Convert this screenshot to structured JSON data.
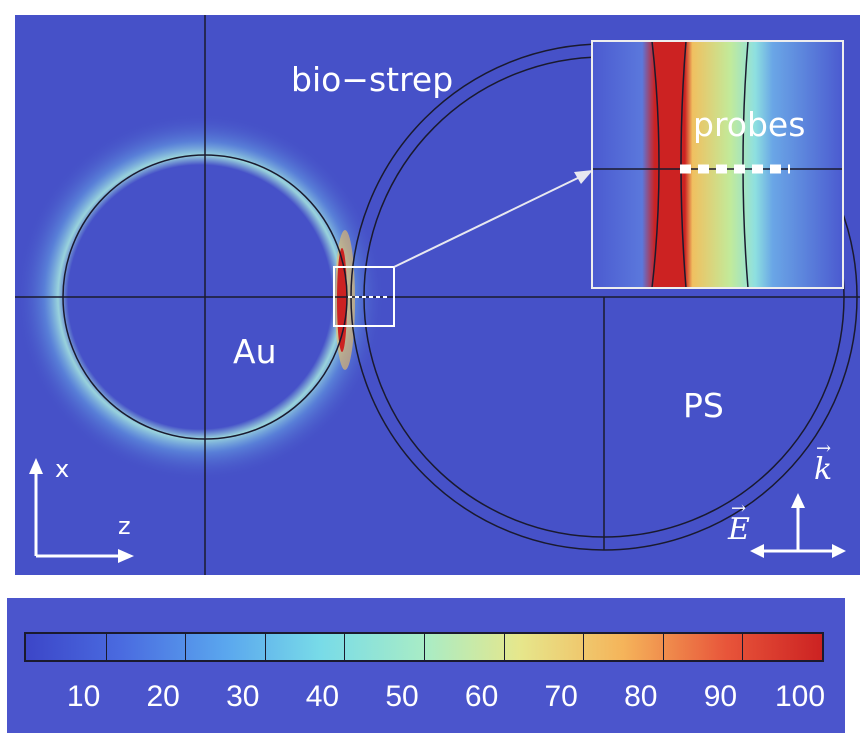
{
  "labels": {
    "bio_strep": "bio−strep",
    "probes": "probes",
    "au": "Au",
    "ps": "PS",
    "axis_x": "x",
    "axis_z": "z",
    "k_vector": "k",
    "e_vector": "E"
  },
  "colorbar": {
    "tick_labels": [
      "10",
      "20",
      "30",
      "40",
      "50",
      "60",
      "70",
      "80",
      "90",
      "100"
    ]
  },
  "colors": {
    "background": "#4651c8",
    "field_hot": "#cc2222",
    "field_warm": "#f0c060",
    "field_cool": "#7fd8e8"
  }
}
